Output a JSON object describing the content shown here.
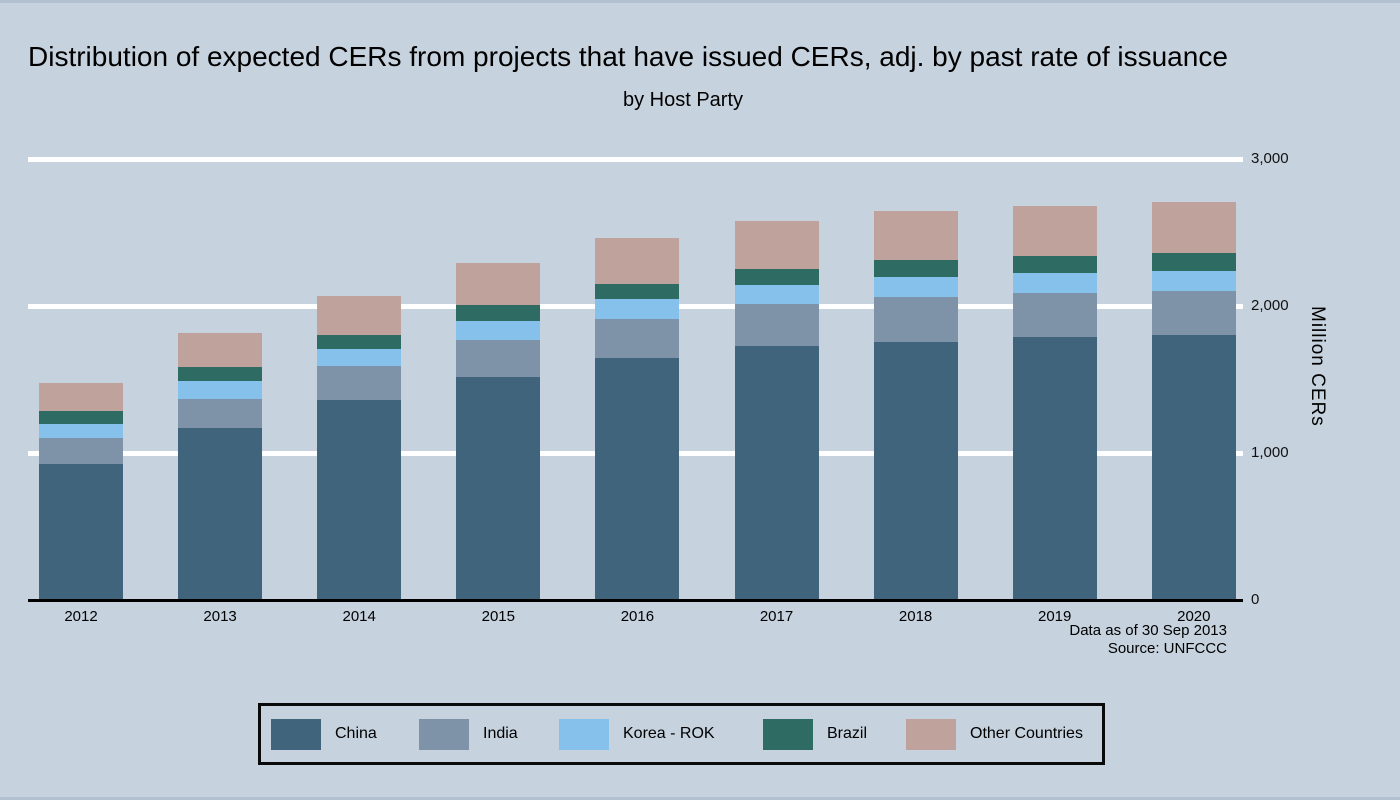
{
  "title": "Distribution of expected CERs from projects that have issued CERs, adj. by past rate of issuance",
  "subtitle": "by Host Party",
  "footnote": {
    "line1": "Data as of 30 Sep 2013",
    "line2": "Source: UNFCCC"
  },
  "y_axis": {
    "label": "Million CERs",
    "ticks": [
      {
        "label": "3,000",
        "value": 3000
      },
      {
        "label": "2,000",
        "value": 2000
      },
      {
        "label": "1,000",
        "value": 1000
      },
      {
        "label": "0",
        "value": 0
      }
    ]
  },
  "colors": {
    "background": "#c6d2de",
    "gridline": "#ffffff",
    "axis_line": "#000000",
    "china": "#3f647b",
    "india": "#7e93a7",
    "korea_rok": "#85c1ea",
    "brazil": "#2e6c63",
    "other_countries": "#bfa29b"
  },
  "chart_data": {
    "type": "bar",
    "stacked": true,
    "title": "Distribution of expected CERs from projects that have issued CERs, adj. by past rate of issuance",
    "subtitle": "by Host Party",
    "xlabel": "",
    "ylabel": "Million CERs",
    "ylim": [
      0,
      3000
    ],
    "gridlines_at": [
      1000,
      2000,
      3000
    ],
    "grid": "on",
    "legend_position": "bottom",
    "categories": [
      "2012",
      "2013",
      "2014",
      "2015",
      "2016",
      "2017",
      "2018",
      "2019",
      "2020"
    ],
    "series": [
      {
        "name": "China",
        "color": "#3f647b",
        "values": [
          925,
          1170,
          1360,
          1515,
          1645,
          1730,
          1755,
          1790,
          1805
        ]
      },
      {
        "name": "India",
        "color": "#7e93a7",
        "values": [
          175,
          200,
          230,
          255,
          265,
          285,
          305,
          300,
          300
        ]
      },
      {
        "name": "Korea - ROK",
        "color": "#85c1ea",
        "values": [
          100,
          120,
          120,
          125,
          135,
          125,
          140,
          135,
          130
        ]
      },
      {
        "name": "Brazil",
        "color": "#2e6c63",
        "values": [
          85,
          95,
          95,
          110,
          105,
          115,
          115,
          115,
          125
        ]
      },
      {
        "name": "Other Countries",
        "color": "#bfa29b",
        "values": [
          190,
          230,
          265,
          285,
          310,
          325,
          330,
          340,
          345
        ]
      }
    ],
    "totals": [
      1475,
      1815,
      2070,
      2290,
      2460,
      2580,
      2645,
      2680,
      2705
    ]
  }
}
